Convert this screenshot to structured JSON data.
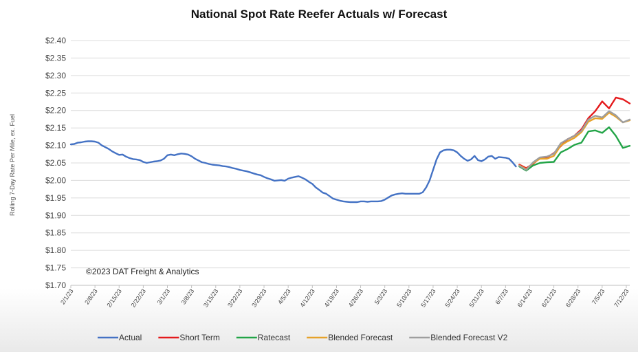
{
  "chart_data": {
    "type": "line",
    "title": "National Spot Rate Reefer Actuals w/ Forecast",
    "ylabel": "Rolling 7-Day Rate Per Mile, ex. Fuel",
    "xlabel": "",
    "annotation": "©2023 DAT Freight & Analytics",
    "ylim": [
      1.7,
      2.4
    ],
    "yticks": [
      1.7,
      1.75,
      1.8,
      1.85,
      1.9,
      1.95,
      2.0,
      2.05,
      2.1,
      2.15,
      2.2,
      2.25,
      2.3,
      2.35,
      2.4
    ],
    "ytick_labels": [
      "$1.70",
      "$1.75",
      "$1.80",
      "$1.85",
      "$1.90",
      "$1.95",
      "$2.00",
      "$2.05",
      "$2.10",
      "$2.15",
      "$2.20",
      "$2.25",
      "$2.30",
      "$2.35",
      "$2.40"
    ],
    "x_start": "2023-02-01",
    "x_end": "2023-07-13",
    "xtick_labels": [
      "2/1/23",
      "2/8/23",
      "2/15/23",
      "2/22/23",
      "3/1/23",
      "3/8/23",
      "3/15/23",
      "3/22/23",
      "3/29/23",
      "4/5/23",
      "4/12/23",
      "4/19/23",
      "4/26/23",
      "5/3/23",
      "5/10/23",
      "5/17/23",
      "5/24/23",
      "5/31/23",
      "6/7/23",
      "6/14/23",
      "6/21/23",
      "6/28/23",
      "7/5/23",
      "7/12/23"
    ],
    "grid": true,
    "legend_position": "bottom",
    "series": [
      {
        "name": "Actual",
        "color": "#4472c4",
        "points": [
          [
            "2023-02-01",
            2.103
          ],
          [
            "2023-02-02",
            2.104
          ],
          [
            "2023-02-03",
            2.108
          ],
          [
            "2023-02-04",
            2.109
          ],
          [
            "2023-02-05",
            2.111
          ],
          [
            "2023-02-06",
            2.112
          ],
          [
            "2023-02-07",
            2.112
          ],
          [
            "2023-02-08",
            2.111
          ],
          [
            "2023-02-09",
            2.108
          ],
          [
            "2023-02-10",
            2.1
          ],
          [
            "2023-02-11",
            2.095
          ],
          [
            "2023-02-12",
            2.09
          ],
          [
            "2023-02-13",
            2.083
          ],
          [
            "2023-02-14",
            2.078
          ],
          [
            "2023-02-15",
            2.073
          ],
          [
            "2023-02-16",
            2.074
          ],
          [
            "2023-02-17",
            2.068
          ],
          [
            "2023-02-18",
            2.064
          ],
          [
            "2023-02-19",
            2.061
          ],
          [
            "2023-02-20",
            2.06
          ],
          [
            "2023-02-21",
            2.058
          ],
          [
            "2023-02-22",
            2.053
          ],
          [
            "2023-02-23",
            2.05
          ],
          [
            "2023-02-24",
            2.052
          ],
          [
            "2023-02-25",
            2.054
          ],
          [
            "2023-02-26",
            2.055
          ],
          [
            "2023-02-27",
            2.057
          ],
          [
            "2023-02-28",
            2.062
          ],
          [
            "2023-03-01",
            2.072
          ],
          [
            "2023-03-02",
            2.074
          ],
          [
            "2023-03-03",
            2.072
          ],
          [
            "2023-03-04",
            2.075
          ],
          [
            "2023-03-05",
            2.077
          ],
          [
            "2023-03-06",
            2.076
          ],
          [
            "2023-03-07",
            2.074
          ],
          [
            "2023-03-08",
            2.069
          ],
          [
            "2023-03-09",
            2.062
          ],
          [
            "2023-03-10",
            2.057
          ],
          [
            "2023-03-11",
            2.052
          ],
          [
            "2023-03-12",
            2.05
          ],
          [
            "2023-03-13",
            2.047
          ],
          [
            "2023-03-14",
            2.045
          ],
          [
            "2023-03-15",
            2.044
          ],
          [
            "2023-03-16",
            2.043
          ],
          [
            "2023-03-17",
            2.041
          ],
          [
            "2023-03-18",
            2.04
          ],
          [
            "2023-03-19",
            2.038
          ],
          [
            "2023-03-20",
            2.035
          ],
          [
            "2023-03-21",
            2.033
          ],
          [
            "2023-03-22",
            2.03
          ],
          [
            "2023-03-23",
            2.028
          ],
          [
            "2023-03-24",
            2.026
          ],
          [
            "2023-03-25",
            2.023
          ],
          [
            "2023-03-26",
            2.02
          ],
          [
            "2023-03-27",
            2.017
          ],
          [
            "2023-03-28",
            2.015
          ],
          [
            "2023-03-29",
            2.01
          ],
          [
            "2023-03-30",
            2.006
          ],
          [
            "2023-03-31",
            2.003
          ],
          [
            "2023-04-01",
            1.999
          ],
          [
            "2023-04-02",
            2.0
          ],
          [
            "2023-04-03",
            2.001
          ],
          [
            "2023-04-04",
            1.999
          ],
          [
            "2023-04-05",
            2.005
          ],
          [
            "2023-04-06",
            2.008
          ],
          [
            "2023-04-07",
            2.01
          ],
          [
            "2023-04-08",
            2.012
          ],
          [
            "2023-04-09",
            2.008
          ],
          [
            "2023-04-10",
            2.003
          ],
          [
            "2023-04-11",
            1.996
          ],
          [
            "2023-04-12",
            1.99
          ],
          [
            "2023-04-13",
            1.98
          ],
          [
            "2023-04-14",
            1.973
          ],
          [
            "2023-04-15",
            1.965
          ],
          [
            "2023-04-16",
            1.962
          ],
          [
            "2023-04-17",
            1.955
          ],
          [
            "2023-04-18",
            1.948
          ],
          [
            "2023-04-19",
            1.945
          ],
          [
            "2023-04-20",
            1.942
          ],
          [
            "2023-04-21",
            1.94
          ],
          [
            "2023-04-22",
            1.939
          ],
          [
            "2023-04-23",
            1.938
          ],
          [
            "2023-04-24",
            1.938
          ],
          [
            "2023-04-25",
            1.938
          ],
          [
            "2023-04-26",
            1.94
          ],
          [
            "2023-04-27",
            1.94
          ],
          [
            "2023-04-28",
            1.939
          ],
          [
            "2023-04-29",
            1.94
          ],
          [
            "2023-04-30",
            1.94
          ],
          [
            "2023-05-01",
            1.94
          ],
          [
            "2023-05-02",
            1.941
          ],
          [
            "2023-05-03",
            1.945
          ],
          [
            "2023-05-04",
            1.951
          ],
          [
            "2023-05-05",
            1.957
          ],
          [
            "2023-05-06",
            1.96
          ],
          [
            "2023-05-07",
            1.962
          ],
          [
            "2023-05-08",
            1.963
          ],
          [
            "2023-05-09",
            1.962
          ],
          [
            "2023-05-10",
            1.962
          ],
          [
            "2023-05-11",
            1.962
          ],
          [
            "2023-05-12",
            1.962
          ],
          [
            "2023-05-13",
            1.962
          ],
          [
            "2023-05-14",
            1.966
          ],
          [
            "2023-05-15",
            1.98
          ],
          [
            "2023-05-16",
            2.0
          ],
          [
            "2023-05-17",
            2.03
          ],
          [
            "2023-05-18",
            2.06
          ],
          [
            "2023-05-19",
            2.08
          ],
          [
            "2023-05-20",
            2.086
          ],
          [
            "2023-05-21",
            2.088
          ],
          [
            "2023-05-22",
            2.088
          ],
          [
            "2023-05-23",
            2.086
          ],
          [
            "2023-05-24",
            2.08
          ],
          [
            "2023-05-25",
            2.07
          ],
          [
            "2023-05-26",
            2.062
          ],
          [
            "2023-05-27",
            2.056
          ],
          [
            "2023-05-28",
            2.06
          ],
          [
            "2023-05-29",
            2.07
          ],
          [
            "2023-05-30",
            2.058
          ],
          [
            "2023-05-31",
            2.055
          ],
          [
            "2023-06-01",
            2.06
          ],
          [
            "2023-06-02",
            2.068
          ],
          [
            "2023-06-03",
            2.07
          ],
          [
            "2023-06-04",
            2.062
          ],
          [
            "2023-06-05",
            2.067
          ],
          [
            "2023-06-06",
            2.066
          ],
          [
            "2023-06-07",
            2.065
          ],
          [
            "2023-06-08",
            2.062
          ],
          [
            "2023-06-09",
            2.052
          ],
          [
            "2023-06-10",
            2.04
          ]
        ]
      },
      {
        "name": "Short Term",
        "color": "#e41a1c",
        "points": [
          [
            "2023-06-11",
            2.045
          ],
          [
            "2023-06-13",
            2.035
          ],
          [
            "2023-06-15",
            2.048
          ],
          [
            "2023-06-17",
            2.064
          ],
          [
            "2023-06-19",
            2.066
          ],
          [
            "2023-06-21",
            2.078
          ],
          [
            "2023-06-23",
            2.098
          ],
          [
            "2023-06-25",
            2.118
          ],
          [
            "2023-06-27",
            2.128
          ],
          [
            "2023-06-29",
            2.146
          ],
          [
            "2023-07-01",
            2.178
          ],
          [
            "2023-07-03",
            2.198
          ],
          [
            "2023-07-05",
            2.226
          ],
          [
            "2023-07-07",
            2.206
          ],
          [
            "2023-07-09",
            2.237
          ],
          [
            "2023-07-11",
            2.232
          ],
          [
            "2023-07-13",
            2.22
          ]
        ]
      },
      {
        "name": "Ratecast",
        "color": "#22a447",
        "points": [
          [
            "2023-06-11",
            2.04
          ],
          [
            "2023-06-13",
            2.028
          ],
          [
            "2023-06-15",
            2.043
          ],
          [
            "2023-06-17",
            2.05
          ],
          [
            "2023-06-19",
            2.052
          ],
          [
            "2023-06-21",
            2.053
          ],
          [
            "2023-06-23",
            2.08
          ],
          [
            "2023-06-25",
            2.09
          ],
          [
            "2023-06-27",
            2.102
          ],
          [
            "2023-06-29",
            2.108
          ],
          [
            "2023-07-01",
            2.14
          ],
          [
            "2023-07-03",
            2.143
          ],
          [
            "2023-07-05",
            2.136
          ],
          [
            "2023-07-07",
            2.152
          ],
          [
            "2023-07-09",
            2.127
          ],
          [
            "2023-07-11",
            2.093
          ],
          [
            "2023-07-13",
            2.099
          ]
        ]
      },
      {
        "name": "Blended Forecast",
        "color": "#e6a22a",
        "points": [
          [
            "2023-06-11",
            2.043
          ],
          [
            "2023-06-13",
            2.032
          ],
          [
            "2023-06-15",
            2.05
          ],
          [
            "2023-06-17",
            2.062
          ],
          [
            "2023-06-19",
            2.062
          ],
          [
            "2023-06-21",
            2.07
          ],
          [
            "2023-06-23",
            2.1
          ],
          [
            "2023-06-25",
            2.112
          ],
          [
            "2023-06-27",
            2.122
          ],
          [
            "2023-06-29",
            2.138
          ],
          [
            "2023-07-01",
            2.168
          ],
          [
            "2023-07-03",
            2.178
          ],
          [
            "2023-07-05",
            2.176
          ],
          [
            "2023-07-07",
            2.194
          ],
          [
            "2023-07-09",
            2.182
          ],
          [
            "2023-07-11",
            2.166
          ],
          [
            "2023-07-13",
            2.172
          ]
        ]
      },
      {
        "name": "Blended Forecast V2",
        "color": "#9e9e9e",
        "points": [
          [
            "2023-06-11",
            2.042
          ],
          [
            "2023-06-13",
            2.03
          ],
          [
            "2023-06-15",
            2.052
          ],
          [
            "2023-06-17",
            2.066
          ],
          [
            "2023-06-19",
            2.068
          ],
          [
            "2023-06-21",
            2.076
          ],
          [
            "2023-06-23",
            2.106
          ],
          [
            "2023-06-25",
            2.118
          ],
          [
            "2023-06-27",
            2.128
          ],
          [
            "2023-06-29",
            2.142
          ],
          [
            "2023-07-01",
            2.174
          ],
          [
            "2023-07-03",
            2.185
          ],
          [
            "2023-07-05",
            2.18
          ],
          [
            "2023-07-07",
            2.198
          ],
          [
            "2023-07-09",
            2.186
          ],
          [
            "2023-07-11",
            2.166
          ],
          [
            "2023-07-13",
            2.174
          ]
        ]
      }
    ]
  }
}
